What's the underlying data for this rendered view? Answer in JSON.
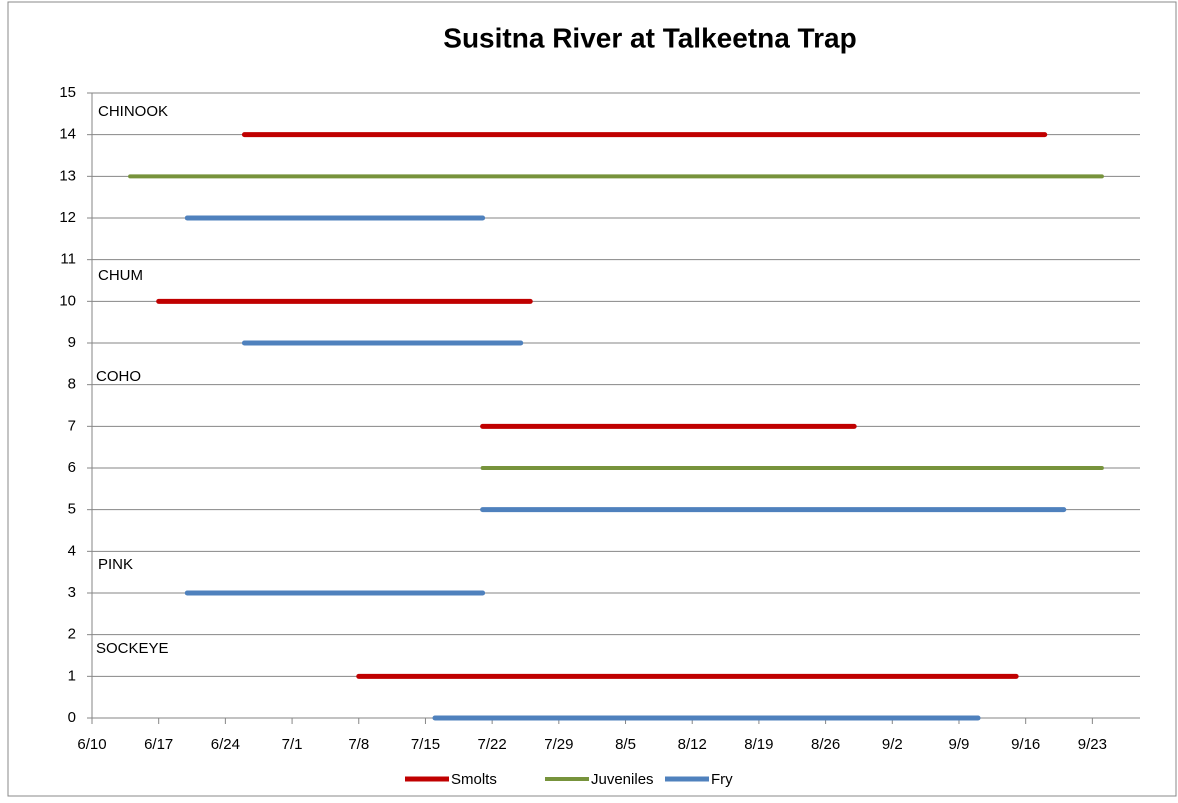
{
  "chart_data": {
    "type": "segments",
    "title": "Susitna River at Talkeetna Trap",
    "annotations": [
      "CHINOOK",
      "CHUM",
      "COHO",
      "PINK",
      "SOCKEYE"
    ],
    "xlim": [
      "6/10",
      "9/28"
    ],
    "xticks": [
      "6/10",
      "6/17",
      "6/24",
      "7/1",
      "7/8",
      "7/15",
      "7/22",
      "7/29",
      "8/5",
      "8/12",
      "8/19",
      "8/26",
      "9/2",
      "9/9",
      "9/16",
      "9/23"
    ],
    "ylim": [
      0,
      15
    ],
    "yticks": [
      0,
      1,
      2,
      3,
      4,
      5,
      6,
      7,
      8,
      9,
      10,
      11,
      12,
      13,
      14,
      15
    ],
    "grid": true,
    "legend": "bottom",
    "series": [
      {
        "name": "Smolts",
        "color": "#c00000",
        "segments": [
          {
            "y": 14,
            "start": "6/26",
            "end": "9/18"
          },
          {
            "y": 10,
            "start": "6/17",
            "end": "7/26"
          },
          {
            "y": 7,
            "start": "7/21",
            "end": "8/29"
          },
          {
            "y": 1,
            "start": "7/8",
            "end": "9/15"
          }
        ]
      },
      {
        "name": "Juveniles",
        "color": "#77933c",
        "segments": [
          {
            "y": 13,
            "start": "6/14",
            "end": "9/24"
          },
          {
            "y": 6,
            "start": "7/21",
            "end": "9/24"
          }
        ]
      },
      {
        "name": "Fry",
        "color": "#4f81bd",
        "segments": [
          {
            "y": 12,
            "start": "6/20",
            "end": "7/21"
          },
          {
            "y": 9,
            "start": "6/26",
            "end": "7/25"
          },
          {
            "y": 5,
            "start": "7/21",
            "end": "9/20"
          },
          {
            "y": 3,
            "start": "6/20",
            "end": "7/21"
          },
          {
            "y": 0,
            "start": "7/16",
            "end": "9/11"
          }
        ]
      }
    ]
  }
}
